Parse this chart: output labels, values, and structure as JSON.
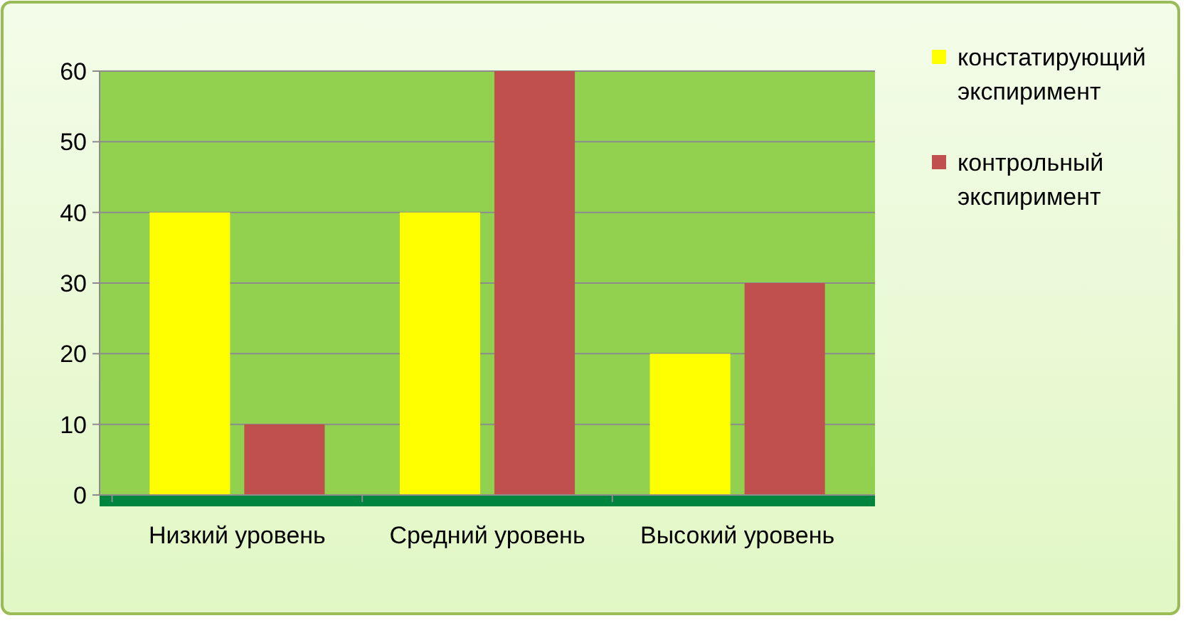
{
  "chart_data": {
    "type": "bar",
    "categories": [
      "Низкий уровень",
      "Средний уровень",
      "Высокий уровень"
    ],
    "series": [
      {
        "name": "констатирующий экспиримент",
        "color": "#ffff00",
        "values": [
          40,
          40,
          20
        ]
      },
      {
        "name": "контрольный экспиримент",
        "color": "#c0504d",
        "values": [
          10,
          60,
          30
        ]
      }
    ],
    "ylim": [
      0,
      60
    ],
    "yticks": [
      0,
      10,
      20,
      30,
      40,
      50,
      60
    ],
    "grid": "y",
    "legend": "right"
  }
}
